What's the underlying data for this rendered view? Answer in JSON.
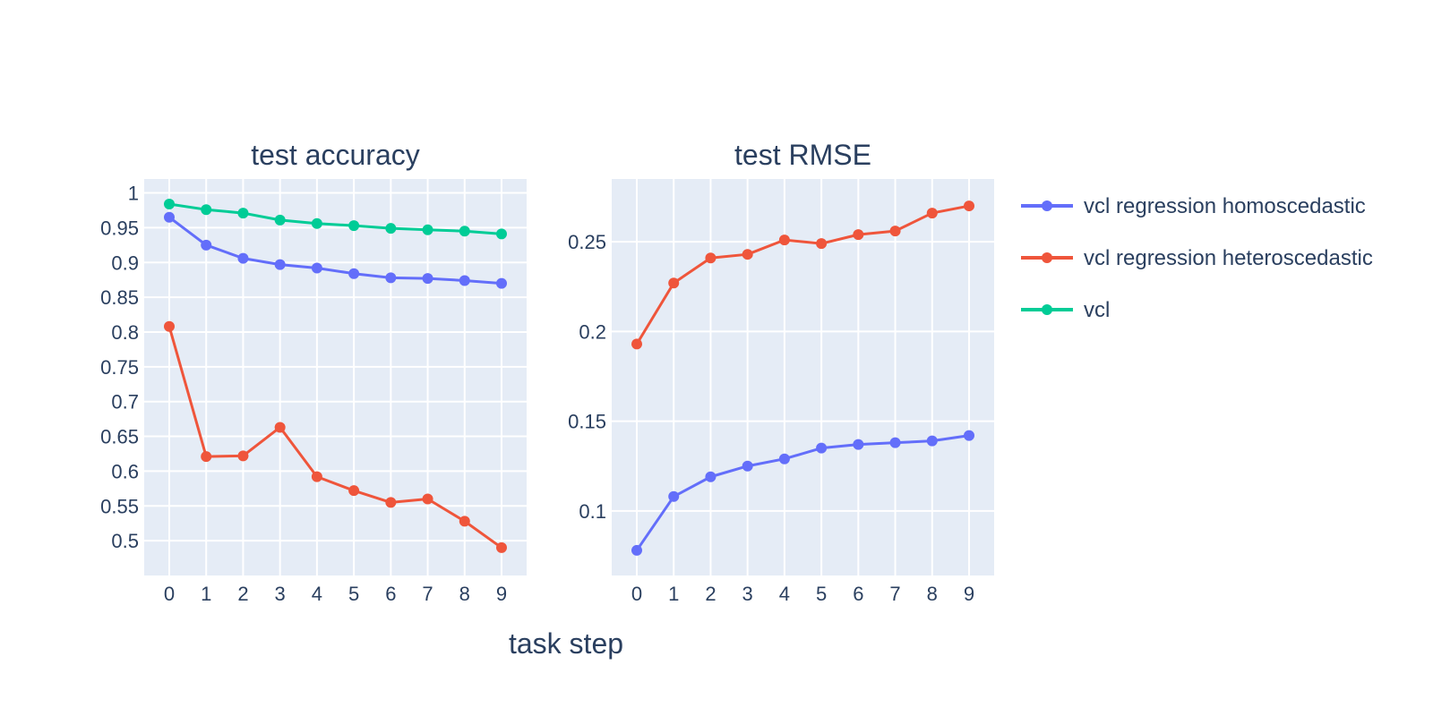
{
  "chart_data": [
    {
      "type": "line",
      "title": "test accuracy",
      "xlabel": "task step",
      "ylabel": "",
      "x": [
        0,
        1,
        2,
        3,
        4,
        5,
        6,
        7,
        8,
        9
      ],
      "xticks": [
        "0",
        "1",
        "2",
        "3",
        "4",
        "5",
        "6",
        "7",
        "8",
        "9"
      ],
      "ylim": [
        0.45,
        1.02
      ],
      "yticks": [
        1,
        0.95,
        0.9,
        0.85,
        0.8,
        0.75,
        0.7,
        0.65,
        0.6,
        0.55,
        0.5
      ],
      "ytick_labels": [
        "1",
        "0.95",
        "0.9",
        "0.85",
        "0.8",
        "0.75",
        "0.7",
        "0.65",
        "0.6",
        "0.55",
        "0.5"
      ],
      "grid": true,
      "series": [
        {
          "name": "vcl regression homoscedastic",
          "color": "#636efa",
          "values": [
            0.965,
            0.925,
            0.906,
            0.897,
            0.892,
            0.884,
            0.878,
            0.877,
            0.874,
            0.87
          ]
        },
        {
          "name": "vcl regression heteroscedastic",
          "color": "#ef553b",
          "values": [
            0.808,
            0.621,
            0.622,
            0.663,
            0.592,
            0.572,
            0.555,
            0.56,
            0.528,
            0.49
          ]
        },
        {
          "name": "vcl",
          "color": "#00cc96",
          "values": [
            0.984,
            0.976,
            0.971,
            0.961,
            0.956,
            0.953,
            0.949,
            0.947,
            0.945,
            0.941
          ]
        }
      ]
    },
    {
      "type": "line",
      "title": "test RMSE",
      "xlabel": "task step",
      "ylabel": "",
      "x": [
        0,
        1,
        2,
        3,
        4,
        5,
        6,
        7,
        8,
        9
      ],
      "xticks": [
        "0",
        "1",
        "2",
        "3",
        "4",
        "5",
        "6",
        "7",
        "8",
        "9"
      ],
      "ylim": [
        0.064,
        0.285
      ],
      "yticks": [
        0.25,
        0.2,
        0.15,
        0.1
      ],
      "ytick_labels": [
        "0.25",
        "0.2",
        "0.15",
        "0.1"
      ],
      "grid": true,
      "series": [
        {
          "name": "vcl regression homoscedastic",
          "color": "#636efa",
          "values": [
            0.078,
            0.108,
            0.119,
            0.125,
            0.129,
            0.135,
            0.137,
            0.138,
            0.139,
            0.142
          ]
        },
        {
          "name": "vcl regression heteroscedastic",
          "color": "#ef553b",
          "values": [
            0.193,
            0.227,
            0.241,
            0.243,
            0.251,
            0.249,
            0.254,
            0.256,
            0.266,
            0.27
          ]
        }
      ]
    }
  ],
  "shared_xlabel": "task step",
  "legend": {
    "placement": "right",
    "items": [
      {
        "label": "vcl regression homoscedastic",
        "color": "#636efa"
      },
      {
        "label": "vcl regression heteroscedastic",
        "color": "#ef553b"
      },
      {
        "label": "vcl",
        "color": "#00cc96"
      }
    ]
  },
  "colors": {
    "plot_bg": "#e5ecf6",
    "grid": "#ffffff",
    "text": "#2a3f5f"
  }
}
